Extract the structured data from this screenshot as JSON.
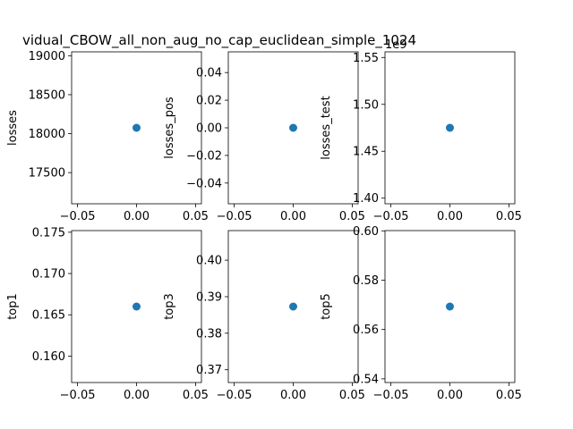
{
  "title": "vidual_CBOW_all_non_aug_no_cap_euclidean_simple_1024",
  "colors": {
    "marker": "#1f77b4",
    "axis": "#000000",
    "background": "#ffffff"
  },
  "chart_data": [
    {
      "type": "scatter",
      "ylabel": "losses",
      "x": [
        0
      ],
      "y": [
        18075
      ],
      "xlim": [
        -0.055,
        0.055
      ],
      "ylim": [
        17100,
        19050
      ],
      "xticks": [
        -0.05,
        0.0,
        0.05
      ],
      "xtick_labels": [
        "−0.05",
        "0.00",
        "0.05"
      ],
      "yticks": [
        17500,
        18000,
        18500,
        19000
      ],
      "ytick_labels": [
        "17500",
        "18000",
        "18500",
        "19000"
      ],
      "offset_label": ""
    },
    {
      "type": "scatter",
      "ylabel": "losses_pos",
      "x": [
        0
      ],
      "y": [
        0
      ],
      "xlim": [
        -0.055,
        0.055
      ],
      "ylim": [
        -0.055,
        0.055
      ],
      "xticks": [
        -0.05,
        0.0,
        0.05
      ],
      "xtick_labels": [
        "−0.05",
        "0.00",
        "0.05"
      ],
      "yticks": [
        -0.04,
        -0.02,
        0.0,
        0.02,
        0.04
      ],
      "ytick_labels": [
        "−0.04",
        "−0.02",
        "0.00",
        "0.02",
        "0.04"
      ],
      "offset_label": ""
    },
    {
      "type": "scatter",
      "ylabel": "losses_test",
      "x": [
        0
      ],
      "y": [
        1.475
      ],
      "xlim": [
        -0.055,
        0.055
      ],
      "ylim": [
        1.394,
        1.556
      ],
      "xticks": [
        -0.05,
        0.0,
        0.05
      ],
      "xtick_labels": [
        "−0.05",
        "0.00",
        "0.05"
      ],
      "yticks": [
        1.4,
        1.45,
        1.5,
        1.55
      ],
      "ytick_labels": [
        "1.40",
        "1.45",
        "1.50",
        "1.55"
      ],
      "offset_label": "1e9"
    },
    {
      "type": "scatter",
      "ylabel": "top1",
      "x": [
        0
      ],
      "y": [
        0.166
      ],
      "xlim": [
        -0.055,
        0.055
      ],
      "ylim": [
        0.1568,
        0.1752
      ],
      "xticks": [
        -0.05,
        0.0,
        0.05
      ],
      "xtick_labels": [
        "−0.05",
        "0.00",
        "0.05"
      ],
      "yticks": [
        0.16,
        0.165,
        0.17,
        0.175
      ],
      "ytick_labels": [
        "0.160",
        "0.165",
        "0.170",
        "0.175"
      ],
      "offset_label": ""
    },
    {
      "type": "scatter",
      "ylabel": "top3",
      "x": [
        0
      ],
      "y": [
        0.3873
      ],
      "xlim": [
        -0.055,
        0.055
      ],
      "ylim": [
        0.3665,
        0.4081
      ],
      "xticks": [
        -0.05,
        0.0,
        0.05
      ],
      "xtick_labels": [
        "−0.05",
        "0.00",
        "0.05"
      ],
      "yticks": [
        0.37,
        0.38,
        0.39,
        0.4
      ],
      "ytick_labels": [
        "0.37",
        "0.38",
        "0.39",
        "0.40"
      ],
      "offset_label": ""
    },
    {
      "type": "scatter",
      "ylabel": "top5",
      "x": [
        0
      ],
      "y": [
        0.5693
      ],
      "xlim": [
        -0.055,
        0.055
      ],
      "ylim": [
        0.5385,
        0.6001
      ],
      "xticks": [
        -0.05,
        0.0,
        0.05
      ],
      "xtick_labels": [
        "−0.05",
        "0.00",
        "0.05"
      ],
      "yticks": [
        0.54,
        0.56,
        0.58,
        0.6
      ],
      "ytick_labels": [
        "0.54",
        "0.56",
        "0.58",
        "0.60"
      ],
      "offset_label": ""
    }
  ]
}
